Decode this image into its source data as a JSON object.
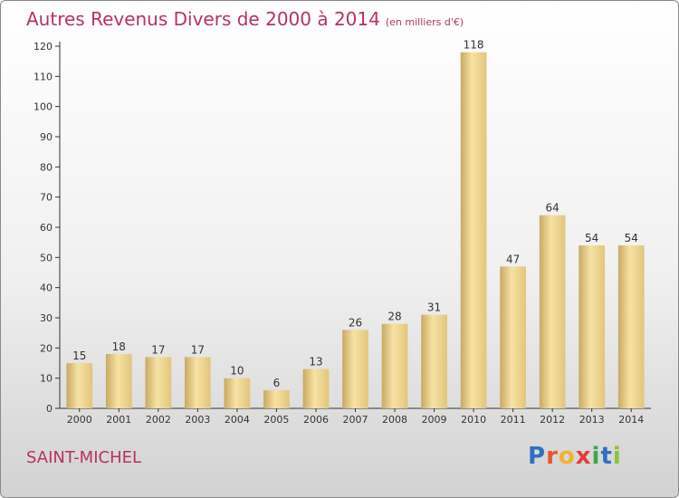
{
  "header": {
    "title": "Autres Revenus Divers de 2000 à 2014",
    "subtitle": "(en milliers d'€)"
  },
  "footer": {
    "commune": "SAINT-MICHEL"
  },
  "logo": {
    "letters": [
      {
        "char": "P",
        "color": "#2f6fc4"
      },
      {
        "char": "r",
        "color": "#e8572b"
      },
      {
        "char": "o",
        "color": "#f0b32a"
      },
      {
        "char": "x",
        "color": "#e23c3c"
      },
      {
        "char": "i",
        "color": "#3aa84a"
      },
      {
        "char": "t",
        "color": "#2f6fc4"
      },
      {
        "char": "i",
        "color": "#8ac33a"
      }
    ]
  },
  "chart_data": {
    "type": "bar",
    "title": "Autres Revenus Divers de 2000 à 2014",
    "subtitle": "(en milliers d'€)",
    "categories": [
      "2000",
      "2001",
      "2002",
      "2003",
      "2004",
      "2005",
      "2006",
      "2007",
      "2008",
      "2009",
      "2010",
      "2011",
      "2012",
      "2013",
      "2014"
    ],
    "values": [
      15,
      18,
      17,
      17,
      10,
      6,
      13,
      26,
      28,
      31,
      118,
      47,
      64,
      54,
      54
    ],
    "ylim": [
      0,
      120
    ],
    "yticks": [
      0,
      10,
      20,
      30,
      40,
      50,
      60,
      70,
      80,
      90,
      100,
      110,
      120
    ],
    "grid": false,
    "bar_color": "#e2c57c",
    "bar_light": "#f7e2a4",
    "bar_dark": "#c9a963"
  }
}
